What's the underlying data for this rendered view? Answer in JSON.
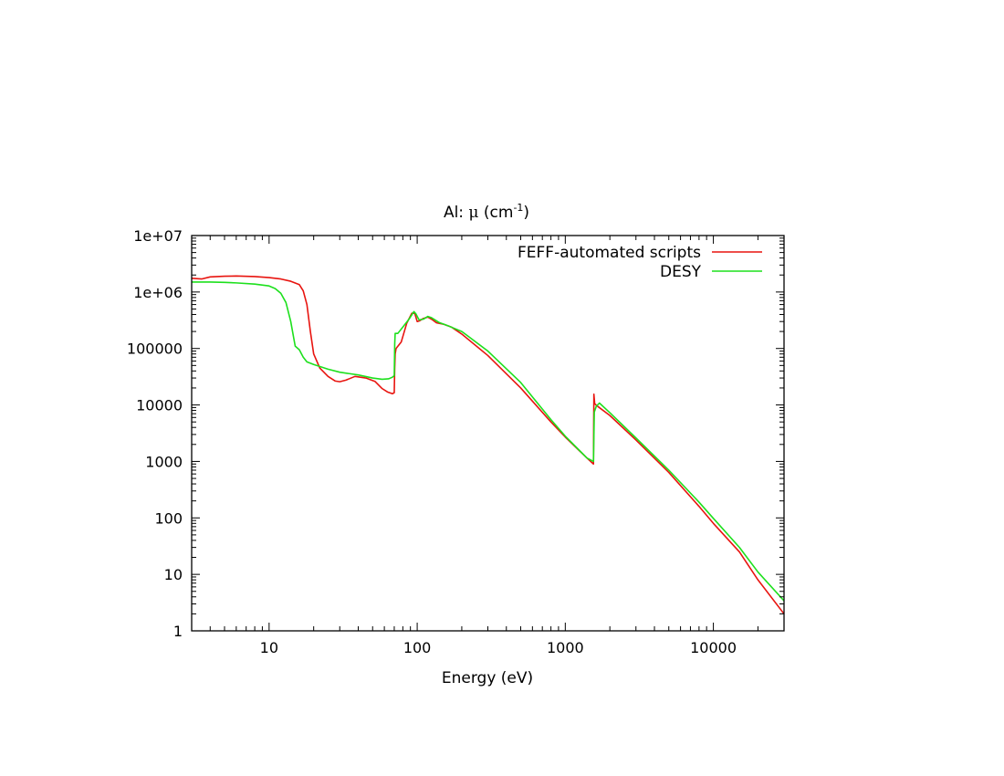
{
  "chart_data": {
    "type": "line",
    "title_prefix": "Al: ",
    "title_mu": "μ",
    "title_open": " (cm",
    "title_sup": "-1",
    "title_close": ")",
    "xlabel": "Energy (eV)",
    "ylabel": "",
    "x_scale": "log",
    "y_scale": "log",
    "xlim": [
      3,
      30000
    ],
    "ylim": [
      1,
      10000000
    ],
    "x_ticks": [
      10,
      100,
      1000,
      10000
    ],
    "x_tick_labels": [
      "10",
      "100",
      "1000",
      "10000"
    ],
    "y_ticks": [
      1,
      10,
      100,
      1000,
      10000,
      100000,
      1000000,
      10000000
    ],
    "y_tick_labels": [
      "1",
      "10",
      "100",
      "1000",
      "10000",
      "100000",
      "1e+06",
      "1e+07"
    ],
    "grid": false,
    "legend_position": "top-right",
    "series": [
      {
        "name": "FEFF-automated scripts",
        "color": "#e8140f",
        "points": [
          [
            3,
            1750000
          ],
          [
            3.5,
            1700000
          ],
          [
            4,
            1850000
          ],
          [
            5,
            1900000
          ],
          [
            6,
            1920000
          ],
          [
            8,
            1880000
          ],
          [
            10,
            1800000
          ],
          [
            12,
            1700000
          ],
          [
            14,
            1550000
          ],
          [
            16,
            1350000
          ],
          [
            17,
            1050000
          ],
          [
            18,
            600000
          ],
          [
            19,
            200000
          ],
          [
            20,
            80000
          ],
          [
            22,
            45000
          ],
          [
            25,
            32000
          ],
          [
            28,
            26500
          ],
          [
            30,
            25800
          ],
          [
            33,
            27500
          ],
          [
            38,
            32000
          ],
          [
            45,
            30000
          ],
          [
            52,
            26000
          ],
          [
            58,
            19500
          ],
          [
            63,
            17000
          ],
          [
            68,
            15800
          ],
          [
            70,
            16500
          ],
          [
            70.5,
            45000
          ],
          [
            71,
            80000
          ],
          [
            72,
            100000
          ],
          [
            78,
            130000
          ],
          [
            85,
            280000
          ],
          [
            92,
            420000
          ],
          [
            96,
            430000
          ],
          [
            100,
            300000
          ],
          [
            104,
            310000
          ],
          [
            110,
            340000
          ],
          [
            118,
            360000
          ],
          [
            125,
            330000
          ],
          [
            135,
            285000
          ],
          [
            150,
            270000
          ],
          [
            170,
            240000
          ],
          [
            200,
            180000
          ],
          [
            300,
            75000
          ],
          [
            500,
            20000
          ],
          [
            800,
            5000
          ],
          [
            1000,
            2700
          ],
          [
            1400,
            1150
          ],
          [
            1550,
            900
          ],
          [
            1560,
            15500
          ],
          [
            1580,
            10500
          ],
          [
            1650,
            9500
          ],
          [
            2000,
            6500
          ],
          [
            3000,
            2400
          ],
          [
            5000,
            640
          ],
          [
            8000,
            160
          ],
          [
            10000,
            80
          ],
          [
            15000,
            25
          ],
          [
            20000,
            8
          ],
          [
            30000,
            2
          ]
        ]
      },
      {
        "name": "DESY",
        "color": "#1de01d",
        "points": [
          [
            3,
            1500000
          ],
          [
            4,
            1500000
          ],
          [
            5,
            1480000
          ],
          [
            6,
            1450000
          ],
          [
            8,
            1380000
          ],
          [
            10,
            1280000
          ],
          [
            11,
            1150000
          ],
          [
            12,
            950000
          ],
          [
            13,
            650000
          ],
          [
            14,
            300000
          ],
          [
            15,
            110000
          ],
          [
            16,
            95000
          ],
          [
            17,
            70000
          ],
          [
            18,
            58000
          ],
          [
            20,
            52000
          ],
          [
            25,
            43000
          ],
          [
            30,
            38000
          ],
          [
            40,
            34000
          ],
          [
            50,
            30000
          ],
          [
            58,
            28500
          ],
          [
            64,
            29000
          ],
          [
            68,
            31000
          ],
          [
            70,
            33000
          ],
          [
            70.5,
            120000
          ],
          [
            71,
            185000
          ],
          [
            74,
            185000
          ],
          [
            80,
            240000
          ],
          [
            88,
            330000
          ],
          [
            95,
            450000
          ],
          [
            98,
            410000
          ],
          [
            103,
            320000
          ],
          [
            110,
            330000
          ],
          [
            118,
            370000
          ],
          [
            125,
            350000
          ],
          [
            140,
            290000
          ],
          [
            160,
            255000
          ],
          [
            200,
            200000
          ],
          [
            300,
            90000
          ],
          [
            500,
            25000
          ],
          [
            800,
            5500
          ],
          [
            1000,
            2800
          ],
          [
            1400,
            1150
          ],
          [
            1550,
            1000
          ],
          [
            1570,
            7500
          ],
          [
            1620,
            9500
          ],
          [
            1700,
            10800
          ],
          [
            2000,
            7300
          ],
          [
            3000,
            2600
          ],
          [
            5000,
            700
          ],
          [
            8000,
            190
          ],
          [
            10000,
            98
          ],
          [
            15000,
            30
          ],
          [
            20000,
            11
          ],
          [
            30000,
            3.4
          ]
        ]
      }
    ]
  }
}
